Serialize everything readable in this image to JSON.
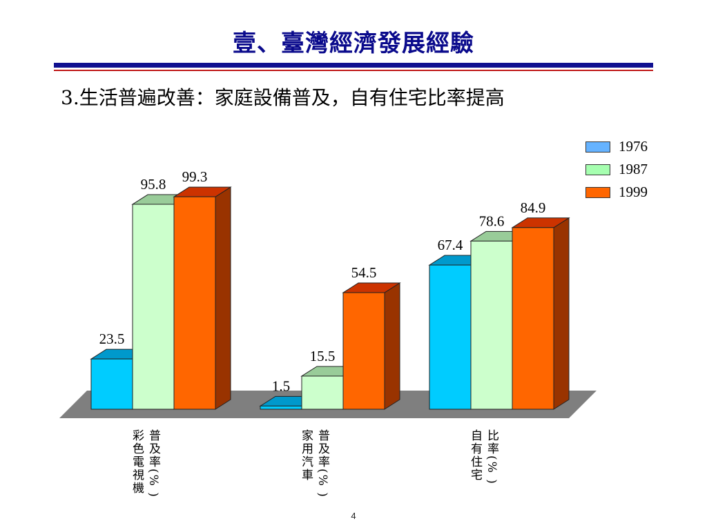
{
  "slide": {
    "title": "壹、臺灣經濟發展經驗",
    "subtitle": "3.生活普遍改善：家庭設備普及，自有住宅比率提高",
    "page_number": "4"
  },
  "colors": {
    "title": "#0a0a8c",
    "rule_top": "#101090",
    "rule_bottom": "#c01818",
    "floor": "#7f7f7f"
  },
  "chart_data": {
    "type": "bar",
    "categories": [
      [
        "普及率(% )",
        "彩色電視機"
      ],
      [
        "普及率(% )",
        "家用汽車"
      ],
      [
        "比率(% )",
        "自有住宅"
      ]
    ],
    "series": [
      {
        "name": "1976",
        "values": [
          23.5,
          1.5,
          67.4
        ],
        "labels": [
          "23.5",
          "1.5",
          "67.4"
        ],
        "color": "#00ccff",
        "top": "#0099cc",
        "side": "#0086b3"
      },
      {
        "name": "1987",
        "values": [
          95.8,
          15.5,
          78.6
        ],
        "labels": [
          "95.8",
          "15.5",
          "78.6"
        ],
        "color": "#ccffcc",
        "top": "#99cc99",
        "side": "#88b388"
      },
      {
        "name": "1999",
        "values": [
          99.3,
          54.5,
          84.9
        ],
        "labels": [
          "99.3",
          "54.5",
          "84.9"
        ],
        "color": "#ff6600",
        "top": "#cc3300",
        "side": "#993300"
      }
    ],
    "legend": {
      "placement": "top-right",
      "items": [
        "1976",
        "1987",
        "1999"
      ]
    },
    "grid": false,
    "three_d": true,
    "ylim": [
      0,
      100
    ]
  }
}
